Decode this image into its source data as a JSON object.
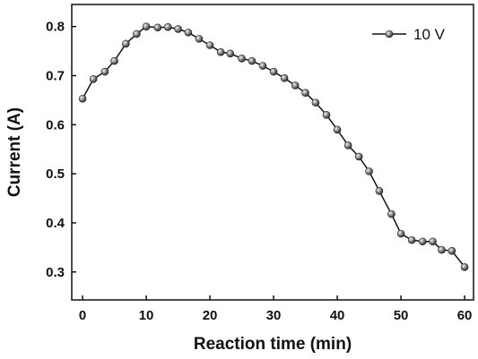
{
  "chart_data": {
    "type": "line",
    "x_label": "Reaction time (min)",
    "y_label": "Current (A)",
    "x": [
      0,
      1.7,
      3.5,
      5,
      6.8,
      8.5,
      10,
      11.8,
      13.4,
      15,
      16.6,
      18.3,
      20,
      21.7,
      23.2,
      25,
      26.6,
      28.3,
      30,
      31.7,
      33.4,
      35,
      36.6,
      38.3,
      40,
      41.7,
      43.4,
      45,
      46.6,
      48.5,
      50,
      51.7,
      53.4,
      55,
      56.4,
      58,
      60
    ],
    "series": [
      {
        "name": "10 V",
        "color": "#111111",
        "values": [
          0.653,
          0.693,
          0.708,
          0.73,
          0.765,
          0.785,
          0.8,
          0.798,
          0.799,
          0.795,
          0.788,
          0.775,
          0.762,
          0.748,
          0.745,
          0.735,
          0.73,
          0.72,
          0.708,
          0.695,
          0.68,
          0.665,
          0.645,
          0.62,
          0.59,
          0.558,
          0.535,
          0.505,
          0.465,
          0.418,
          0.378,
          0.365,
          0.362,
          0.362,
          0.345,
          0.343,
          0.31
        ]
      }
    ],
    "xlim": [
      -1.7,
      61.4
    ],
    "ylim": [
      0.243,
      0.845
    ],
    "xticks": [
      0,
      10,
      20,
      30,
      40,
      50,
      60
    ],
    "yticks": [
      0.3,
      0.4,
      0.5,
      0.6,
      0.7,
      0.8
    ],
    "legend": "upper right"
  }
}
